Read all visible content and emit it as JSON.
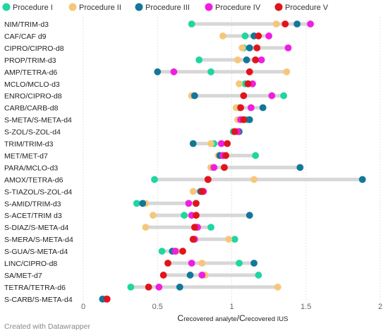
{
  "chart_data": {
    "type": "scatter",
    "subtype": "dot-range",
    "title": "",
    "xlabel": {
      "c1": "C",
      "sub1": "recovered analyte",
      "sep": "/",
      "c2": "C",
      "sub2": "recovered IUS"
    },
    "ylabel": "",
    "xlim": [
      0,
      2
    ],
    "xticks": [
      0,
      0.5,
      1,
      1.5,
      2
    ],
    "xtick_labels": [
      "0",
      "0.5",
      "1",
      "1.5",
      "2"
    ],
    "legend_position": "top-left",
    "grid": true,
    "series": [
      {
        "name": "Procedure I",
        "color": "#1fd6a0"
      },
      {
        "name": "Procedure II",
        "color": "#f5c77a"
      },
      {
        "name": "Procedure III",
        "color": "#13779a"
      },
      {
        "name": "Procedure IV",
        "color": "#f01ee0"
      },
      {
        "name": "Procedure V",
        "color": "#e0151b"
      }
    ],
    "rows": [
      {
        "label": "NIM/TRIM-d3",
        "values": [
          0.73,
          1.3,
          1.44,
          1.53,
          1.36
        ]
      },
      {
        "label": "CAF/CAF d9",
        "values": [
          1.09,
          0.94,
          1.15,
          1.25,
          1.18
        ]
      },
      {
        "label": "CIPRO/CIPRO-d8",
        "values": [
          1.08,
          1.07,
          1.12,
          1.38,
          1.17
        ]
      },
      {
        "label": "PROP/TRIM-d3",
        "values": [
          0.78,
          1.04,
          1.1,
          1.2,
          1.16
        ]
      },
      {
        "label": "AMP/TETRA-d6",
        "values": [
          0.86,
          1.37,
          0.5,
          0.61,
          1.12
        ]
      },
      {
        "label": "MCLO/MCLO-d3",
        "values": [
          1.09,
          1.05,
          1.11,
          1.14,
          1.11
        ]
      },
      {
        "label": "ENRO/CIPRO-d8",
        "values": [
          1.35,
          0.73,
          0.75,
          1.27,
          1.08
        ]
      },
      {
        "label": "CARB/CARB-d8",
        "values": [
          1.05,
          1.03,
          1.21,
          1.13,
          1.06
        ]
      },
      {
        "label": "S-META/S-META-d4",
        "values": [
          1.1,
          1.04,
          1.12,
          1.06,
          1.08
        ]
      },
      {
        "label": "S-ZOL/S-ZOL-d4",
        "values": [
          1.01,
          1.02,
          1.05,
          1.04,
          1.02
        ]
      },
      {
        "label": "TRIM/TRIM-d3",
        "values": [
          0.88,
          0.86,
          0.74,
          0.93,
          0.97
        ]
      },
      {
        "label": "MET/MET-d7",
        "values": [
          1.16,
          0.91,
          0.92,
          0.94,
          0.96
        ]
      },
      {
        "label": "PARA/MCLO-d3",
        "values": [
          0.86,
          0.86,
          1.46,
          0.88,
          0.95
        ]
      },
      {
        "label": "AMOX/TETRA-d6",
        "values": [
          0.48,
          1.15,
          1.88,
          0.84,
          0.84
        ]
      },
      {
        "label": "S-TIAZOL/S-ZOL-d4",
        "values": [
          0.8,
          0.74,
          0.79,
          0.81,
          0.8
        ]
      },
      {
        "label": "S-AMID/TRIM-d3",
        "values": [
          0.36,
          0.42,
          0.4,
          0.71,
          0.76
        ]
      },
      {
        "label": "S-ACET/TRIM d3",
        "values": [
          0.68,
          0.47,
          1.12,
          0.73,
          0.76
        ]
      },
      {
        "label": "S-DIAZ/S-META-d4",
        "values": [
          0.86,
          0.42,
          0.76,
          0.77,
          0.75
        ]
      },
      {
        "label": "S-MERA/S-META-d4",
        "values": [
          1.02,
          0.98,
          0.74,
          0.75,
          0.74
        ]
      },
      {
        "label": "S-GUA/S-META-d4",
        "values": [
          0.53,
          0.63,
          0.6,
          0.62,
          0.67
        ]
      },
      {
        "label": "LINC/CIPRO-d8",
        "values": [
          1.05,
          0.8,
          1.15,
          0.73,
          0.57
        ]
      },
      {
        "label": "SA/MET-d7",
        "values": [
          1.18,
          0.82,
          0.72,
          0.8,
          0.54
        ]
      },
      {
        "label": "TETRA/TETRA-d6",
        "values": [
          0.32,
          1.31,
          0.65,
          0.51,
          0.44
        ]
      },
      {
        "label": "S-CARB/S-META-d4",
        "values": [
          0.15,
          0.16,
          0.13,
          0.16,
          0.16
        ]
      }
    ]
  },
  "footer": {
    "credit": "Created with Datawrapper"
  }
}
